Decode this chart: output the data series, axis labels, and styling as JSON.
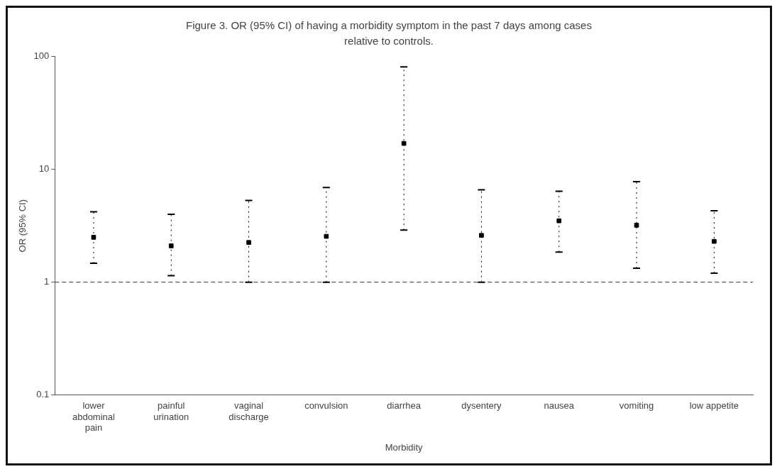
{
  "chart_data": {
    "type": "scatter",
    "title": "Figure 3.  OR (95% CI) of having a morbidity symptom in the past 7 days among cases relative to controls.",
    "xlabel": "Morbidity",
    "ylabel": "OR (95% CI)",
    "categories": [
      "lower abdominal pain",
      "painful urination",
      "vaginal discharge",
      "convulsion",
      "diarrhea",
      "dysentery",
      "nausea",
      "vomiting",
      "low appetite"
    ],
    "values": [
      2.5,
      2.1,
      2.25,
      2.55,
      17,
      2.6,
      3.5,
      3.2,
      2.3
    ],
    "errors": [
      [
        1.47,
        4.2
      ],
      [
        1.14,
        4.0
      ],
      [
        1.0,
        5.3
      ],
      [
        1.0,
        6.9
      ],
      [
        2.9,
        81
      ],
      [
        1.0,
        6.6
      ],
      [
        1.85,
        6.4
      ],
      [
        1.33,
        7.8
      ],
      [
        1.2,
        4.3
      ]
    ],
    "color": "#000000",
    "marker": "square",
    "log": true,
    "ylim": [
      0.1,
      100
    ],
    "yticks": [
      0.1,
      1,
      10,
      100
    ],
    "grid": false,
    "legend": false,
    "ref_lines": [
      {
        "axis": "y",
        "value": 1,
        "line_style": "dashed"
      }
    ]
  }
}
